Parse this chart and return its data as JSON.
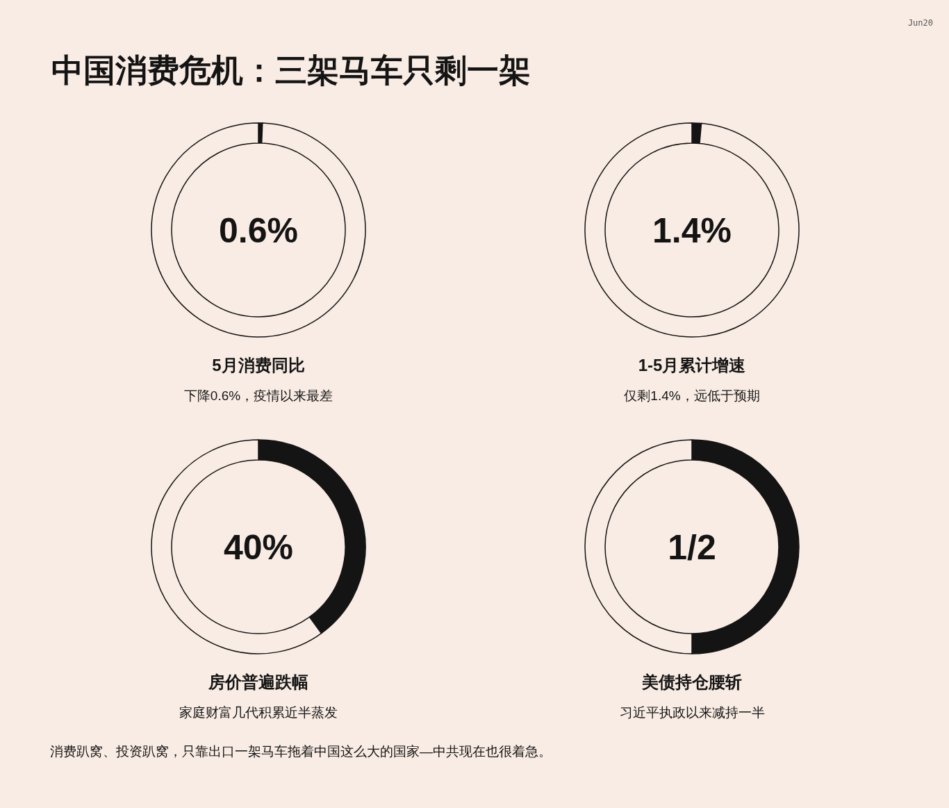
{
  "chart_data": [
    {
      "type": "other",
      "title": "中国消费危机：三架马车只剩一架",
      "annotations": [
        "Jun20",
        "消费趴窝、投资趴窝，只靠出口一架马车拖着中国这么大的国家—中共现在也很着急。"
      ]
    },
    {
      "type": "donut",
      "title": "5月消费同比",
      "subtitle": "下降0.6%，疫情以来最差",
      "categories": [
        null,
        null
      ],
      "values": [
        0.6,
        99.4
      ],
      "colors": [
        "#141414",
        "#f9ece4"
      ],
      "annotations": [
        "0.6%"
      ]
    },
    {
      "type": "donut",
      "title": "1-5月累计增速",
      "subtitle": "仅剩1.4%，远低于预期",
      "categories": [
        null,
        null
      ],
      "values": [
        1.4,
        98.6
      ],
      "colors": [
        "#141414",
        "#f9ece4"
      ],
      "annotations": [
        "1.4%"
      ]
    },
    {
      "type": "donut",
      "title": "房价普遍跌幅",
      "subtitle": "家庭财富几代积累近半蒸发",
      "categories": [
        null,
        null
      ],
      "values": [
        40,
        60
      ],
      "colors": [
        "#141414",
        "#f9ece4"
      ],
      "annotations": [
        "40%"
      ]
    },
    {
      "type": "donut",
      "title": "美债持仓腰斩",
      "subtitle": "习近平执政以来减持一半",
      "categories": [
        null,
        null
      ],
      "values": [
        50,
        50
      ],
      "colors": [
        "#141414",
        "#f9ece4"
      ],
      "annotations": [
        "1/2"
      ]
    }
  ]
}
